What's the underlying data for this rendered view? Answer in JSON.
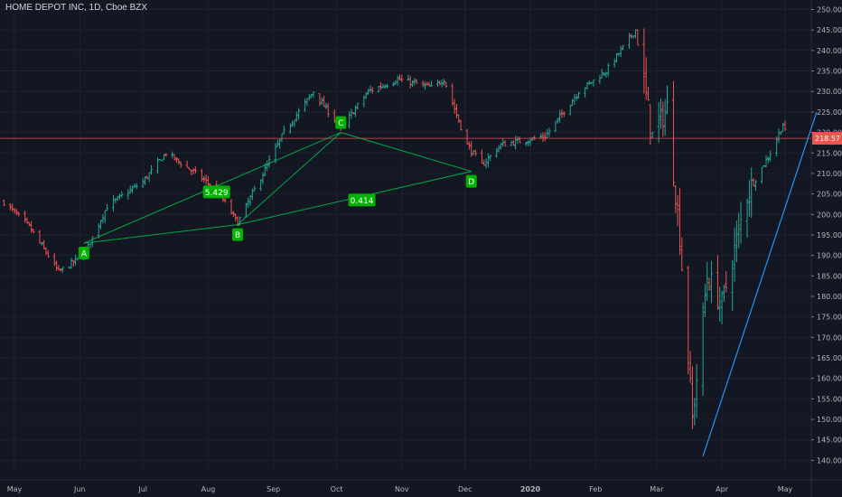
{
  "header": {
    "title": "HOME DEPOT INC, 1D, Cboe BZX"
  },
  "colors": {
    "background": "#131722",
    "grid": "#1e2230",
    "bull": "#26a69a",
    "bear": "#ef5350",
    "pattern": "#00c853",
    "pattern_label_bg": "#00b300",
    "trendline": "#2196f3",
    "price_line": "#ef5350"
  },
  "chart_data": {
    "type": "ohlc",
    "instrument": "HOME DEPOT INC",
    "interval": "1D",
    "exchange": "Cboe BZX",
    "ylim": [
      137,
      251
    ],
    "y_ticks": [
      140,
      145,
      150,
      155,
      160,
      165,
      170,
      175,
      180,
      185,
      190,
      195,
      200,
      205,
      210,
      215,
      220,
      225,
      230,
      235,
      240,
      245,
      250
    ],
    "x_ticks": [
      "May",
      "Jun",
      "Jul",
      "Aug",
      "Sep",
      "Oct",
      "Nov",
      "Dec",
      "2020",
      "Feb",
      "Mar",
      "Apr",
      "May"
    ],
    "x_tick_dates": [
      "2019-05-01",
      "2019-06-01",
      "2019-07-01",
      "2019-08-01",
      "2019-09-01",
      "2019-10-01",
      "2019-11-01",
      "2019-12-01",
      "2020-01-01",
      "2020-02-01",
      "2020-03-01",
      "2020-04-01",
      "2020-05-01"
    ],
    "last_price": 218.57,
    "anchors": [
      [
        "2019-04-26",
        203
      ],
      [
        "2019-05-08",
        197
      ],
      [
        "2019-05-22",
        186
      ],
      [
        "2019-06-03",
        190
      ],
      [
        "2019-06-14",
        202
      ],
      [
        "2019-07-01",
        208
      ],
      [
        "2019-07-12",
        215
      ],
      [
        "2019-07-26",
        210
      ],
      [
        "2019-08-05",
        206
      ],
      [
        "2019-08-15",
        198
      ],
      [
        "2019-08-22",
        205
      ],
      [
        "2019-09-06",
        220
      ],
      [
        "2019-09-20",
        230
      ],
      [
        "2019-10-03",
        221
      ],
      [
        "2019-10-16",
        230
      ],
      [
        "2019-10-30",
        233
      ],
      [
        "2019-11-15",
        231
      ],
      [
        "2019-11-21",
        233
      ],
      [
        "2019-12-02",
        217
      ],
      [
        "2019-12-09",
        212
      ],
      [
        "2019-12-18",
        217
      ],
      [
        "2020-01-08",
        219
      ],
      [
        "2020-01-24",
        230
      ],
      [
        "2020-02-06",
        235
      ],
      [
        "2020-02-20",
        245
      ],
      [
        "2020-02-28",
        219
      ],
      [
        "2020-03-06",
        226
      ],
      [
        "2020-03-12",
        195
      ],
      [
        "2020-03-18",
        150
      ],
      [
        "2020-03-25",
        185
      ],
      [
        "2020-04-01",
        178
      ],
      [
        "2020-04-13",
        205
      ],
      [
        "2020-04-24",
        215
      ],
      [
        "2020-04-30",
        222
      ],
      [
        "2020-05-02",
        218.5
      ]
    ],
    "pattern": {
      "points": [
        {
          "label": "A",
          "date": "2019-06-03",
          "price": 193
        },
        {
          "label": "B",
          "date": "2019-08-15",
          "price": 197.5
        },
        {
          "label": "C",
          "date": "2019-10-03",
          "price": 220
        },
        {
          "label": "D",
          "date": "2019-12-04",
          "price": 210.5
        }
      ],
      "ratios": [
        {
          "value": "5.429",
          "date": "2019-08-05",
          "price": 205.5
        },
        {
          "value": "0.414",
          "date": "2019-10-13",
          "price": 203.5
        }
      ]
    },
    "trendline": {
      "from": [
        "2020-03-23",
        141
      ],
      "to": [
        "2020-05-16",
        225
      ]
    }
  }
}
